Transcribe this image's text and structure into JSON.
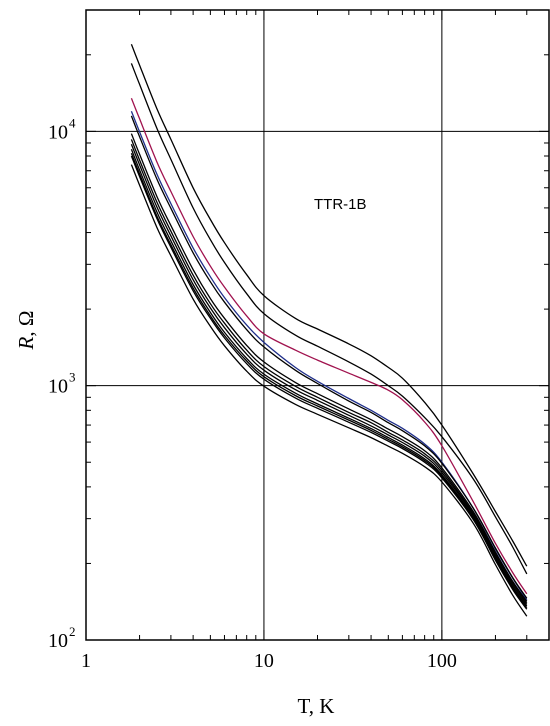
{
  "chart_data": {
    "type": "line",
    "title": "",
    "annotation": "TTR-1B",
    "xlabel": "T, K",
    "ylabel": {
      "italic": "R",
      "rest": ", Ω"
    },
    "x_scale": "log",
    "y_scale": "log",
    "xlim": [
      1,
      400
    ],
    "ylim": [
      100,
      30000
    ],
    "x_ticks": [
      {
        "value": 1,
        "label": "1"
      },
      {
        "value": 10,
        "label": "10"
      },
      {
        "value": 100,
        "label": "100"
      }
    ],
    "y_ticks": [
      {
        "value": 100,
        "base": "10",
        "exp": "2"
      },
      {
        "value": 1000,
        "base": "10",
        "exp": "3"
      },
      {
        "value": 10000,
        "base": "10",
        "exp": "4"
      }
    ],
    "grid": true,
    "legend": "none",
    "x": [
      1.8,
      2,
      2.5,
      3,
      4,
      5,
      6,
      8,
      10,
      15,
      20,
      30,
      40,
      50,
      60,
      80,
      100,
      150,
      200,
      250,
      300
    ],
    "series": [
      {
        "color": "#000000",
        "values": [
          22000,
          18200,
          12300,
          9300,
          6000,
          4500,
          3650,
          2730,
          2260,
          1840,
          1670,
          1460,
          1310,
          1180,
          1070,
          860,
          700,
          450,
          320,
          245,
          195
        ]
      },
      {
        "color": "#000000",
        "values": [
          18500,
          15300,
          10300,
          7760,
          5000,
          3750,
          3050,
          2300,
          1920,
          1580,
          1430,
          1240,
          1110,
          1000,
          910,
          750,
          630,
          430,
          305,
          232,
          182
        ]
      },
      {
        "color": "#a0124e",
        "values": [
          13500,
          11200,
          7600,
          5800,
          3860,
          2950,
          2440,
          1880,
          1600,
          1380,
          1260,
          1120,
          1030,
          960,
          880,
          720,
          580,
          350,
          240,
          184,
          152
        ]
      },
      {
        "color": "#1f2f8a",
        "values": [
          12000,
          9950,
          6800,
          5200,
          3480,
          2680,
          2220,
          1730,
          1480,
          1180,
          1040,
          890,
          800,
          730,
          680,
          590,
          500,
          330,
          228,
          175,
          144
        ]
      },
      {
        "color": "#000000",
        "values": [
          11500,
          9520,
          6500,
          4980,
          3330,
          2560,
          2130,
          1660,
          1420,
          1150,
          1020,
          870,
          785,
          715,
          665,
          580,
          495,
          330,
          230,
          176,
          146
        ]
      },
      {
        "color": "#000000",
        "values": [
          9800,
          8120,
          5560,
          4260,
          2860,
          2200,
          1840,
          1440,
          1240,
          1030,
          930,
          810,
          735,
          675,
          630,
          555,
          475,
          320,
          222,
          170,
          142
        ]
      },
      {
        "color": "#000000",
        "values": [
          9300,
          7710,
          5280,
          4050,
          2720,
          2100,
          1760,
          1380,
          1190,
          995,
          900,
          785,
          715,
          655,
          612,
          540,
          465,
          315,
          220,
          168,
          140
        ]
      },
      {
        "color": "#000000",
        "values": [
          8900,
          7380,
          5050,
          3880,
          2610,
          2020,
          1690,
          1330,
          1150,
          965,
          875,
          765,
          695,
          640,
          598,
          528,
          455,
          310,
          216,
          165,
          138
        ]
      },
      {
        "color": "#000000",
        "values": [
          8500,
          7050,
          4830,
          3710,
          2500,
          1940,
          1620,
          1280,
          1110,
          935,
          848,
          745,
          678,
          625,
          584,
          516,
          446,
          305,
          212,
          162,
          136
        ]
      },
      {
        "color": "#000000",
        "values": [
          8000,
          6640,
          4550,
          3500,
          2360,
          1840,
          1540,
          1220,
          1060,
          895,
          815,
          718,
          655,
          605,
          566,
          500,
          434,
          298,
          206,
          158,
          132
        ]
      },
      {
        "color": "#000000",
        "values": [
          7400,
          6140,
          4200,
          3240,
          2190,
          1710,
          1435,
          1140,
          995,
          845,
          772,
          683,
          625,
          578,
          542,
          480,
          418,
          288,
          198,
          150,
          124
        ]
      },
      {
        "color": "#000000",
        "values": [
          8200,
          6800,
          4650,
          3580,
          2420,
          1880,
          1575,
          1250,
          1085,
          915,
          832,
          732,
          667,
          615,
          575,
          508,
          440,
          302,
          209,
          160,
          134
        ]
      }
    ]
  }
}
